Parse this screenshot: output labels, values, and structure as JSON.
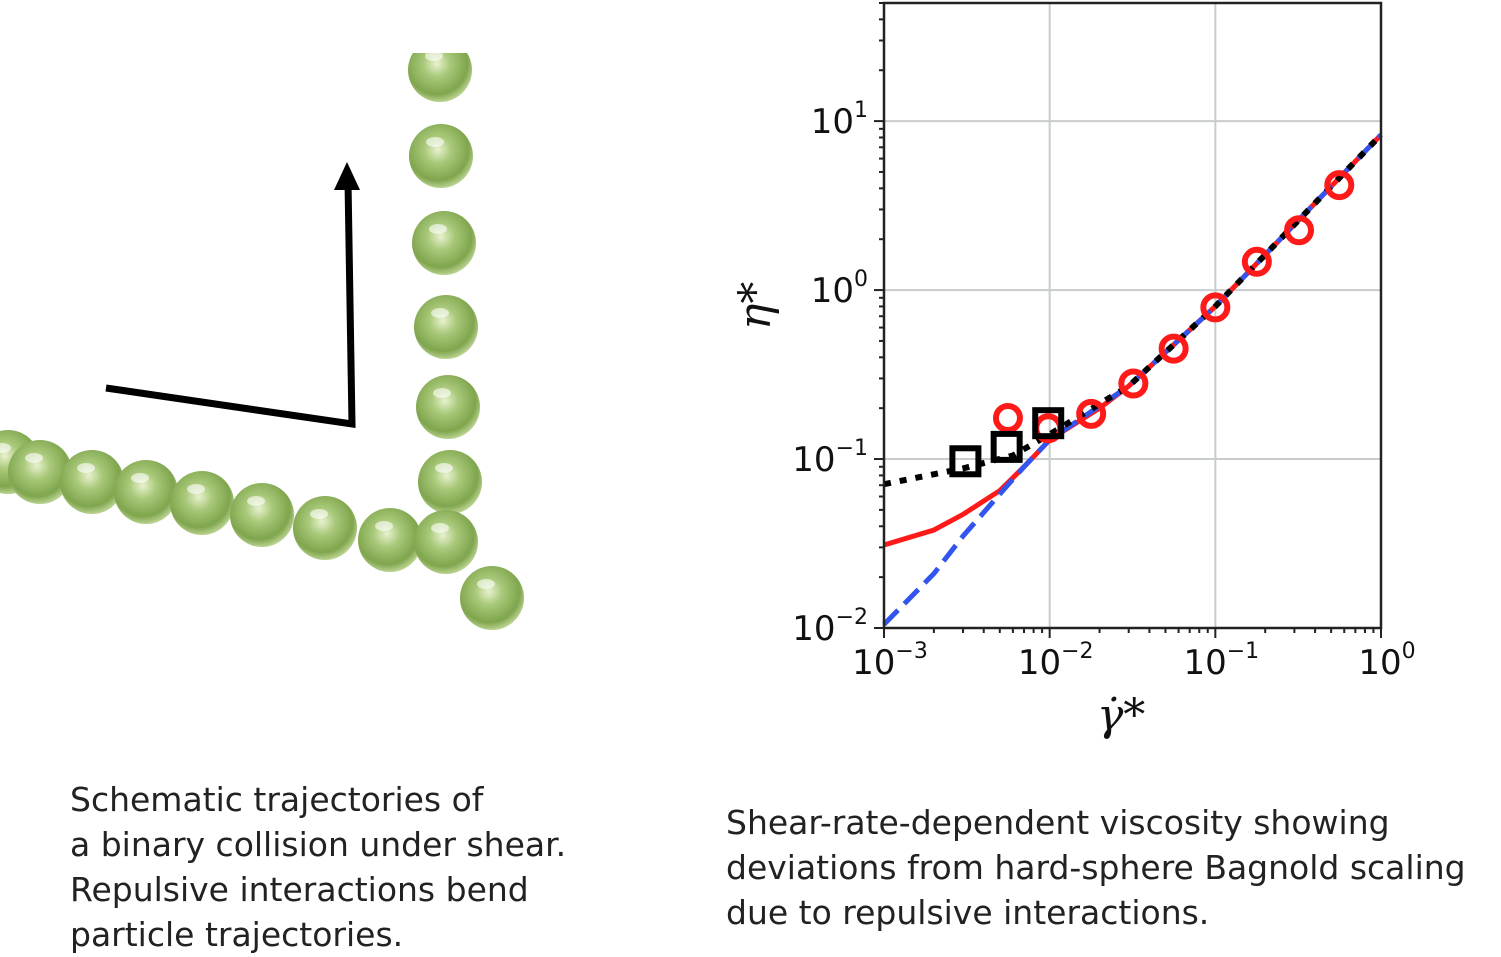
{
  "schematic": {
    "description_icon": "sphere-chain-icon",
    "sphere_color": "#9fbf6a",
    "arrow_color": "#000000"
  },
  "captions": {
    "left": [
      "Schematic trajectories of",
      "a binary collision under shear.",
      "Repulsive interactions bend",
      "particle trajectories."
    ],
    "right": [
      "Shear-rate-dependent viscosity showing",
      "deviations from hard-sphere Bagnold scaling",
      "due to repulsive interactions."
    ]
  },
  "chart_data": {
    "type": "line",
    "title": "",
    "xlabel": "γ̇*",
    "ylabel": "η*",
    "xscale": "log",
    "yscale": "log",
    "xlim": [
      0.001,
      1
    ],
    "ylim": [
      0.01,
      50
    ],
    "grid": true,
    "xticks": [
      {
        "base": "10",
        "exp": "−3",
        "value": 0.001
      },
      {
        "base": "10",
        "exp": "−2",
        "value": 0.01
      },
      {
        "base": "10",
        "exp": "−1",
        "value": 0.1
      },
      {
        "base": "10",
        "exp": "0",
        "value": 1
      }
    ],
    "yticks": [
      {
        "base": "10",
        "exp": "−2",
        "value": 0.01
      },
      {
        "base": "10",
        "exp": "−1",
        "value": 0.1
      },
      {
        "base": "10",
        "exp": "0",
        "value": 1
      },
      {
        "base": "10",
        "exp": "1",
        "value": 10
      }
    ],
    "series": [
      {
        "style": "solid",
        "color": "#ff1a1a",
        "x": [
          0.001,
          0.002,
          0.003,
          0.005,
          0.007,
          0.01,
          0.02,
          0.03,
          0.1,
          1
        ],
        "y": [
          0.031,
          0.038,
          0.047,
          0.065,
          0.09,
          0.13,
          0.2,
          0.27,
          0.8,
          8.3
        ]
      },
      {
        "style": "dashed",
        "color": "#3355ee",
        "x": [
          0.001,
          0.002,
          0.003,
          0.005,
          0.007,
          0.01,
          0.03,
          0.1,
          1
        ],
        "y": [
          0.0105,
          0.021,
          0.035,
          0.062,
          0.09,
          0.13,
          0.27,
          0.8,
          8.3
        ]
      },
      {
        "style": "dotted",
        "color": "#000000",
        "x": [
          0.001,
          0.003,
          0.006,
          0.01,
          0.03,
          0.1,
          1
        ],
        "y": [
          0.071,
          0.088,
          0.105,
          0.14,
          0.27,
          0.8,
          8.3
        ]
      },
      {
        "style": "markers",
        "marker": "circle",
        "color": "#ff1a1a",
        "x": [
          0.0056,
          0.0098,
          0.0178,
          0.032,
          0.056,
          0.1,
          0.178,
          0.32,
          0.56
        ],
        "y": [
          0.175,
          0.152,
          0.185,
          0.28,
          0.45,
          0.79,
          1.47,
          2.26,
          4.18
        ]
      },
      {
        "style": "markers",
        "marker": "square",
        "color": "#000000",
        "x": [
          0.0031,
          0.0055,
          0.0098
        ],
        "y": [
          0.097,
          0.118,
          0.163
        ]
      }
    ]
  }
}
